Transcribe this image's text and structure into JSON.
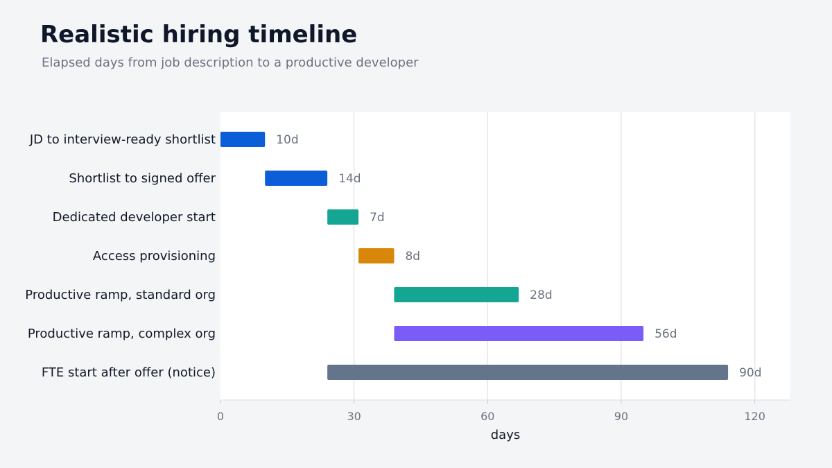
{
  "header": {
    "title": "Realistic hiring timeline",
    "subtitle": "Elapsed days from job description to a productive developer"
  },
  "chart_data": {
    "type": "bar",
    "orientation": "horizontal",
    "subtype": "gantt",
    "xlabel": "days",
    "xlim": [
      0,
      128
    ],
    "xticks": [
      0,
      30,
      60,
      90,
      120
    ],
    "grid": "vertical",
    "bars": [
      {
        "label": "JD to interview-ready shortlist",
        "start": 0,
        "duration": 10,
        "data_label": "10d",
        "color": "#0b5ed7"
      },
      {
        "label": "Shortlist to signed offer",
        "start": 10,
        "duration": 14,
        "data_label": "14d",
        "color": "#0b5ed7"
      },
      {
        "label": "Dedicated developer start",
        "start": 24,
        "duration": 7,
        "data_label": "7d",
        "color": "#14a693"
      },
      {
        "label": "Access provisioning",
        "start": 31,
        "duration": 8,
        "data_label": "8d",
        "color": "#d9870a"
      },
      {
        "label": "Productive ramp, standard org",
        "start": 39,
        "duration": 28,
        "data_label": "28d",
        "color": "#14a693"
      },
      {
        "label": "Productive ramp, complex org",
        "start": 39,
        "duration": 56,
        "data_label": "56d",
        "color": "#7c5cf7"
      },
      {
        "label": "FTE start after offer (notice)",
        "start": 24,
        "duration": 90,
        "data_label": "90d",
        "color": "#64748b"
      }
    ]
  }
}
